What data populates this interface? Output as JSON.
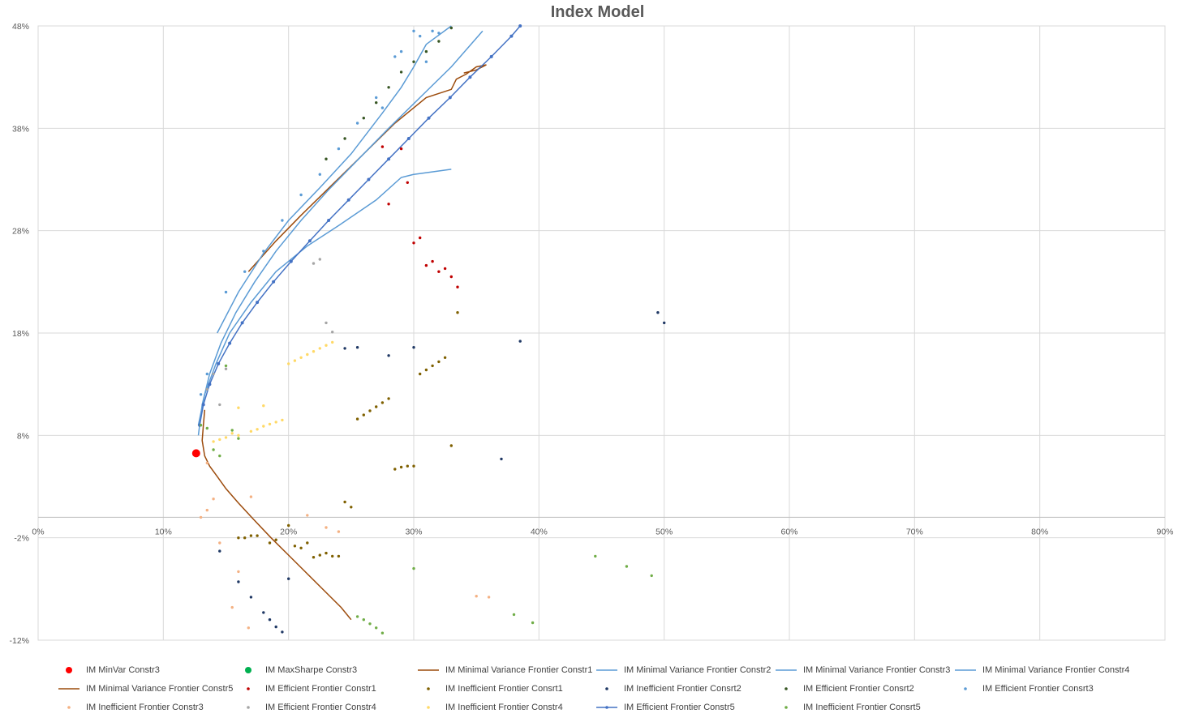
{
  "chart_data": {
    "type": "scatter",
    "title": "Index Model",
    "xlabel": "",
    "ylabel": "",
    "xlim": [
      0,
      0.9
    ],
    "ylim": [
      -0.12,
      0.48
    ],
    "x_ticks": [
      0,
      0.1,
      0.2,
      0.3,
      0.4,
      0.5,
      0.6,
      0.7,
      0.8,
      0.9
    ],
    "x_tick_labels": [
      "0%",
      "10%",
      "20%",
      "30%",
      "40%",
      "50%",
      "60%",
      "70%",
      "80%",
      "90%"
    ],
    "y_ticks": [
      -0.12,
      -0.02,
      0.08,
      0.18,
      0.28,
      0.38,
      0.48
    ],
    "y_tick_labels": [
      "-12%",
      "-2%",
      "8%",
      "18%",
      "28%",
      "38%",
      "48%"
    ],
    "grid": true,
    "legend_position": "bottom",
    "series": [
      {
        "name": "IM MinVar Constr3",
        "kind": "marker",
        "color": "#ff0000",
        "points": [
          [
            0.1262,
            0.0625
          ]
        ]
      },
      {
        "name": "IM MaxSharpe Constr3",
        "kind": "marker",
        "color": "#00b050",
        "points": []
      },
      {
        "name": "IM Minimal Variance Frontier Constr1",
        "kind": "line",
        "color": "#9c4b0c",
        "points": [
          [
            0.168,
            0.24
          ],
          [
            0.19,
            0.27
          ],
          [
            0.21,
            0.295
          ],
          [
            0.235,
            0.325
          ],
          [
            0.26,
            0.355
          ],
          [
            0.285,
            0.385
          ],
          [
            0.298,
            0.398
          ],
          [
            0.31,
            0.41
          ],
          [
            0.33,
            0.418
          ],
          [
            0.334,
            0.428
          ],
          [
            0.342,
            0.433
          ],
          [
            0.35,
            0.44
          ],
          [
            0.358,
            0.442
          ],
          [
            0.35,
            0.437
          ],
          [
            0.34,
            0.434
          ]
        ]
      },
      {
        "name": "IM Minimal Variance Frontier Constr2",
        "kind": "line",
        "color": "#5b9bd5",
        "points": [
          [
            0.143,
            0.18
          ],
          [
            0.16,
            0.22
          ],
          [
            0.18,
            0.258
          ],
          [
            0.2,
            0.29
          ],
          [
            0.225,
            0.322
          ],
          [
            0.25,
            0.355
          ],
          [
            0.275,
            0.395
          ],
          [
            0.29,
            0.42
          ],
          [
            0.3,
            0.44
          ],
          [
            0.31,
            0.462
          ],
          [
            0.33,
            0.48
          ]
        ]
      },
      {
        "name": "IM Minimal Variance Frontier Constr3",
        "kind": "line",
        "color": "#5b9bd5",
        "points": [
          [
            0.128,
            0.08
          ],
          [
            0.131,
            0.11
          ],
          [
            0.137,
            0.14
          ],
          [
            0.146,
            0.17
          ],
          [
            0.158,
            0.2
          ],
          [
            0.173,
            0.23
          ],
          [
            0.19,
            0.26
          ],
          [
            0.21,
            0.29
          ],
          [
            0.232,
            0.32
          ],
          [
            0.256,
            0.35
          ],
          [
            0.28,
            0.38
          ],
          [
            0.305,
            0.41
          ],
          [
            0.33,
            0.44
          ],
          [
            0.355,
            0.475
          ]
        ]
      },
      {
        "name": "IM Minimal Variance Frontier Constr4",
        "kind": "line",
        "color": "#5b9bd5",
        "points": [
          [
            0.128,
            0.09
          ],
          [
            0.133,
            0.12
          ],
          [
            0.142,
            0.15
          ],
          [
            0.153,
            0.18
          ],
          [
            0.17,
            0.21
          ],
          [
            0.19,
            0.24
          ],
          [
            0.215,
            0.265
          ],
          [
            0.24,
            0.285
          ],
          [
            0.27,
            0.31
          ],
          [
            0.29,
            0.332
          ],
          [
            0.3,
            0.335
          ],
          [
            0.33,
            0.34
          ]
        ]
      },
      {
        "name": "IM Minimal Variance Frontier Constr5",
        "kind": "line",
        "color": "#9c4b0c",
        "points": [
          [
            0.133,
            0.105
          ],
          [
            0.132,
            0.09
          ],
          [
            0.131,
            0.075
          ],
          [
            0.133,
            0.06
          ],
          [
            0.137,
            0.05
          ],
          [
            0.143,
            0.04
          ],
          [
            0.15,
            0.028
          ],
          [
            0.16,
            0.014
          ],
          [
            0.172,
            -0.002
          ],
          [
            0.186,
            -0.02
          ],
          [
            0.2,
            -0.037
          ],
          [
            0.214,
            -0.054
          ],
          [
            0.228,
            -0.071
          ],
          [
            0.242,
            -0.088
          ],
          [
            0.25,
            -0.1
          ]
        ]
      },
      {
        "name": "IM Efficient Frontier Constr1",
        "kind": "marker",
        "color": "#c00000",
        "points": [
          [
            0.29,
            0.36
          ],
          [
            0.295,
            0.327
          ],
          [
            0.28,
            0.306
          ],
          [
            0.305,
            0.273
          ],
          [
            0.3,
            0.268
          ],
          [
            0.315,
            0.25
          ],
          [
            0.31,
            0.246
          ],
          [
            0.325,
            0.243
          ],
          [
            0.32,
            0.24
          ],
          [
            0.33,
            0.235
          ],
          [
            0.335,
            0.225
          ],
          [
            0.275,
            0.362
          ]
        ]
      },
      {
        "name": "IM Inefficient Frontier Consrt1",
        "kind": "marker",
        "color": "#7f6000",
        "points": [
          [
            0.255,
            0.096
          ],
          [
            0.26,
            0.1
          ],
          [
            0.265,
            0.104
          ],
          [
            0.27,
            0.108
          ],
          [
            0.275,
            0.112
          ],
          [
            0.28,
            0.116
          ],
          [
            0.305,
            0.14
          ],
          [
            0.31,
            0.144
          ],
          [
            0.315,
            0.148
          ],
          [
            0.32,
            0.152
          ],
          [
            0.325,
            0.156
          ],
          [
            0.335,
            0.2
          ],
          [
            0.33,
            0.07
          ],
          [
            0.285,
            0.047
          ],
          [
            0.29,
            0.049
          ],
          [
            0.295,
            0.05
          ],
          [
            0.3,
            0.05
          ],
          [
            0.245,
            0.015
          ],
          [
            0.25,
            0.01
          ],
          [
            0.2,
            -0.008
          ],
          [
            0.205,
            -0.028
          ],
          [
            0.21,
            -0.03
          ],
          [
            0.215,
            -0.025
          ],
          [
            0.22,
            -0.039
          ],
          [
            0.225,
            -0.037
          ],
          [
            0.23,
            -0.035
          ],
          [
            0.235,
            -0.038
          ],
          [
            0.24,
            -0.038
          ],
          [
            0.19,
            -0.022
          ],
          [
            0.185,
            -0.025
          ],
          [
            0.175,
            -0.018
          ],
          [
            0.17,
            -0.018
          ],
          [
            0.165,
            -0.02
          ],
          [
            0.16,
            -0.02
          ]
        ]
      },
      {
        "name": "IM Inefficient Frontier Consrt2",
        "kind": "marker",
        "color": "#1f3864",
        "points": [
          [
            0.245,
            0.165
          ],
          [
            0.255,
            0.166
          ],
          [
            0.28,
            0.158
          ],
          [
            0.3,
            0.166
          ],
          [
            0.385,
            0.172
          ],
          [
            0.495,
            0.2
          ],
          [
            0.5,
            0.19
          ],
          [
            0.37,
            0.057
          ],
          [
            0.2,
            -0.06
          ],
          [
            0.145,
            -0.033
          ],
          [
            0.16,
            -0.063
          ],
          [
            0.17,
            -0.078
          ],
          [
            0.18,
            -0.093
          ],
          [
            0.185,
            -0.1
          ],
          [
            0.19,
            -0.107
          ],
          [
            0.195,
            -0.112
          ]
        ]
      },
      {
        "name": "IM Efficient Frontier Consrt2",
        "kind": "marker",
        "color": "#375623",
        "points": [
          [
            0.23,
            0.35
          ],
          [
            0.245,
            0.37
          ],
          [
            0.26,
            0.39
          ],
          [
            0.27,
            0.405
          ],
          [
            0.28,
            0.42
          ],
          [
            0.29,
            0.435
          ],
          [
            0.3,
            0.445
          ],
          [
            0.31,
            0.455
          ],
          [
            0.32,
            0.465
          ],
          [
            0.33,
            0.478
          ]
        ]
      },
      {
        "name": "IM Efficient Frontier Consrt3",
        "kind": "marker",
        "color": "#5b9bd5",
        "points": [
          [
            0.15,
            0.22
          ],
          [
            0.165,
            0.24
          ],
          [
            0.18,
            0.26
          ],
          [
            0.195,
            0.29
          ],
          [
            0.21,
            0.315
          ],
          [
            0.225,
            0.335
          ],
          [
            0.24,
            0.36
          ],
          [
            0.255,
            0.385
          ],
          [
            0.27,
            0.41
          ],
          [
            0.285,
            0.45
          ],
          [
            0.3,
            0.475
          ],
          [
            0.315,
            0.475
          ],
          [
            0.275,
            0.4
          ],
          [
            0.31,
            0.445
          ],
          [
            0.29,
            0.455
          ],
          [
            0.305,
            0.47
          ],
          [
            0.32,
            0.473
          ],
          [
            0.13,
            0.12
          ],
          [
            0.135,
            0.14
          ]
        ]
      },
      {
        "name": "IM Inefficient Frontier Constr3",
        "kind": "marker",
        "color": "#f4b183",
        "points": [
          [
            0.135,
            0.053
          ],
          [
            0.14,
            0.018
          ],
          [
            0.17,
            0.02
          ],
          [
            0.215,
            0.002
          ],
          [
            0.23,
            -0.01
          ],
          [
            0.24,
            -0.014
          ],
          [
            0.145,
            -0.025
          ],
          [
            0.16,
            -0.053
          ],
          [
            0.155,
            -0.088
          ],
          [
            0.168,
            -0.108
          ],
          [
            0.35,
            -0.077
          ],
          [
            0.36,
            -0.078
          ],
          [
            0.13,
            -0.0
          ],
          [
            0.135,
            0.007
          ]
        ]
      },
      {
        "name": "IM Efficient Frontier Constr4",
        "kind": "marker",
        "color": "#a5a5a5",
        "points": [
          [
            0.22,
            0.248
          ],
          [
            0.225,
            0.252
          ],
          [
            0.23,
            0.19
          ],
          [
            0.235,
            0.181
          ],
          [
            0.14,
            0.14
          ],
          [
            0.15,
            0.145
          ],
          [
            0.145,
            0.11
          ],
          [
            0.135,
            0.125
          ]
        ]
      },
      {
        "name": "IM Inefficient Frontier Constr4",
        "kind": "marker",
        "color": "#ffd966",
        "points": [
          [
            0.2,
            0.15
          ],
          [
            0.205,
            0.153
          ],
          [
            0.21,
            0.156
          ],
          [
            0.215,
            0.159
          ],
          [
            0.22,
            0.162
          ],
          [
            0.225,
            0.165
          ],
          [
            0.23,
            0.168
          ],
          [
            0.235,
            0.171
          ],
          [
            0.14,
            0.074
          ],
          [
            0.145,
            0.076
          ],
          [
            0.15,
            0.078
          ],
          [
            0.16,
            0.08
          ],
          [
            0.17,
            0.084
          ],
          [
            0.175,
            0.086
          ],
          [
            0.18,
            0.089
          ],
          [
            0.185,
            0.091
          ],
          [
            0.19,
            0.093
          ],
          [
            0.195,
            0.095
          ],
          [
            0.16,
            0.107
          ],
          [
            0.18,
            0.109
          ],
          [
            0.155,
            0.082
          ]
        ]
      },
      {
        "name": "IM Efficient Frontier Constr5",
        "kind": "line-marker",
        "color": "#4472c4",
        "points": [
          [
            0.129,
            0.09
          ],
          [
            0.132,
            0.11
          ],
          [
            0.137,
            0.13
          ],
          [
            0.144,
            0.15
          ],
          [
            0.153,
            0.17
          ],
          [
            0.163,
            0.19
          ],
          [
            0.175,
            0.21
          ],
          [
            0.188,
            0.23
          ],
          [
            0.202,
            0.25
          ],
          [
            0.217,
            0.27
          ],
          [
            0.232,
            0.29
          ],
          [
            0.248,
            0.31
          ],
          [
            0.264,
            0.33
          ],
          [
            0.28,
            0.35
          ],
          [
            0.296,
            0.37
          ],
          [
            0.312,
            0.39
          ],
          [
            0.329,
            0.41
          ],
          [
            0.345,
            0.43
          ],
          [
            0.362,
            0.45
          ],
          [
            0.378,
            0.47
          ],
          [
            0.385,
            0.48
          ]
        ]
      },
      {
        "name": "IM Inefficient Frontier Consrt5",
        "kind": "marker",
        "color": "#70ad47",
        "points": [
          [
            0.255,
            -0.097
          ],
          [
            0.26,
            -0.1
          ],
          [
            0.265,
            -0.104
          ],
          [
            0.27,
            -0.108
          ],
          [
            0.275,
            -0.113
          ],
          [
            0.3,
            -0.05
          ],
          [
            0.445,
            -0.038
          ],
          [
            0.47,
            -0.048
          ],
          [
            0.49,
            -0.057
          ],
          [
            0.38,
            -0.095
          ],
          [
            0.395,
            -0.103
          ],
          [
            0.13,
            0.09
          ],
          [
            0.135,
            0.087
          ],
          [
            0.14,
            0.066
          ],
          [
            0.145,
            0.06
          ],
          [
            0.155,
            0.085
          ],
          [
            0.16,
            0.077
          ],
          [
            0.15,
            0.148
          ]
        ]
      }
    ]
  }
}
